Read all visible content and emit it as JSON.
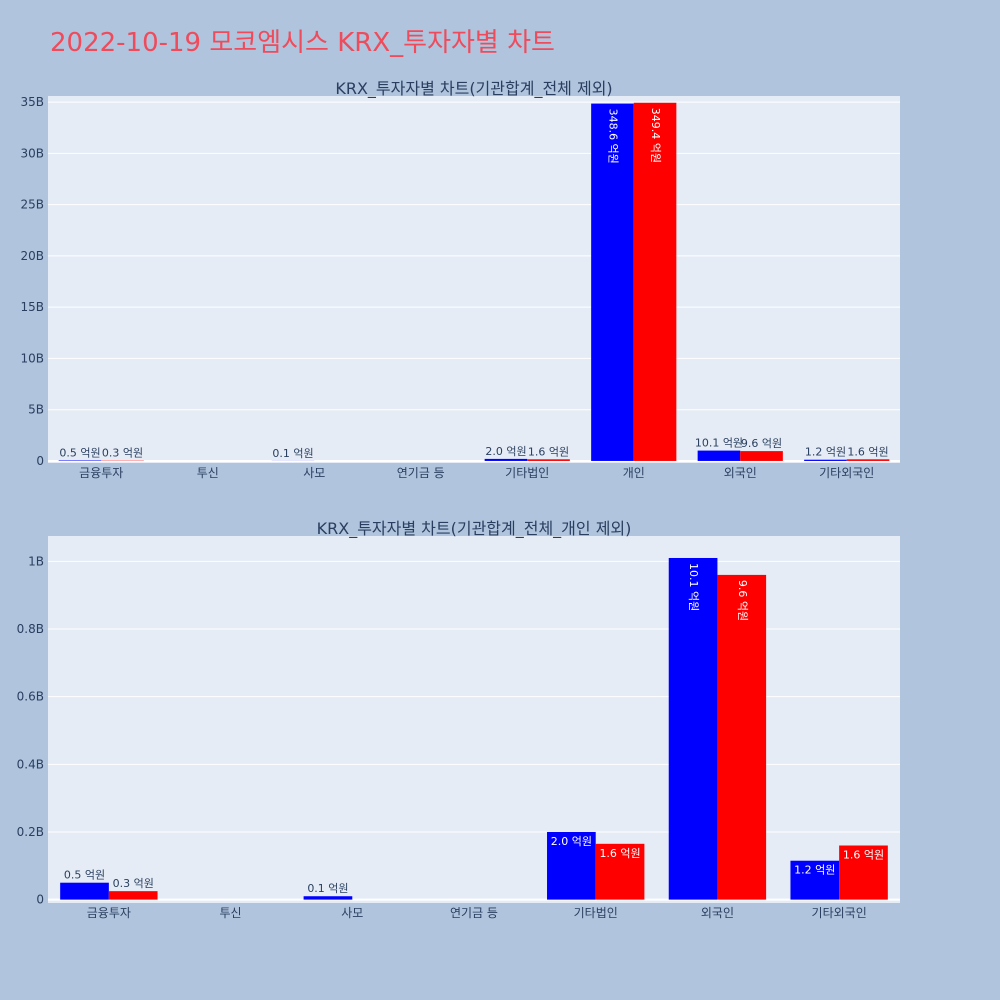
{
  "page_title": "2022-10-19 모코엠시스 KRX_투자자별 차트",
  "colors": {
    "background": "#b0c4de",
    "plot_background": "#e5ecf6",
    "title": "#ef4b5b",
    "text": "#2a3f5f",
    "series_a": "#0000ff",
    "series_b": "#ff0000"
  },
  "chart_data": [
    {
      "type": "bar",
      "title": "KRX_투자자별 차트(기관합계_전체 제외)",
      "categories": [
        "금융투자",
        "투신",
        "사모",
        "연기금 등",
        "기타법인",
        "개인",
        "외국인",
        "기타외국인"
      ],
      "series": [
        {
          "color": "#0000ff",
          "values": [
            50000000,
            0,
            10000000,
            0,
            200000000,
            34860000000,
            1010000000,
            120000000
          ],
          "labels": [
            "0.5 억원",
            "",
            "0.1 억원",
            "",
            "2.0 억원",
            "348.6 억원",
            "10.1 억원",
            "1.2 억원"
          ]
        },
        {
          "color": "#ff0000",
          "values": [
            30000000,
            0,
            0,
            0,
            160000000,
            34940000000,
            960000000,
            160000000
          ],
          "labels": [
            "0.3 억원",
            "",
            "",
            "",
            "1.6 억원",
            "349.4 억원",
            "9.6 억원",
            "1.6 억원"
          ]
        }
      ],
      "yticks": [
        {
          "value": 0,
          "label": "0"
        },
        {
          "value": 5000000000,
          "label": "5B"
        },
        {
          "value": 10000000000,
          "label": "10B"
        },
        {
          "value": 15000000000,
          "label": "15B"
        },
        {
          "value": 20000000000,
          "label": "20B"
        },
        {
          "value": 25000000000,
          "label": "25B"
        },
        {
          "value": 30000000000,
          "label": "30B"
        },
        {
          "value": 35000000000,
          "label": "35B"
        }
      ],
      "ylim": [
        -200000000,
        35600000000
      ],
      "grid": true
    },
    {
      "type": "bar",
      "title": "KRX_투자자별 차트(기관합계_전체_개인 제외)",
      "categories": [
        "금융투자",
        "투신",
        "사모",
        "연기금 등",
        "기타법인",
        "외국인",
        "기타외국인"
      ],
      "series": [
        {
          "color": "#0000ff",
          "values": [
            50000000,
            0,
            10000000,
            0,
            200000000,
            1010000000,
            115000000
          ],
          "labels": [
            "0.5 억원",
            "",
            "0.1 억원",
            "",
            "2.0 억원",
            "10.1 억원",
            "1.2 억원"
          ]
        },
        {
          "color": "#ff0000",
          "values": [
            25000000,
            0,
            0,
            0,
            165000000,
            960000000,
            160000000
          ],
          "labels": [
            "0.3 억원",
            "",
            "",
            "",
            "1.6 억원",
            "9.6 억원",
            "1.6 억원"
          ]
        }
      ],
      "yticks": [
        {
          "value": 0,
          "label": "0"
        },
        {
          "value": 200000000,
          "label": "0.2B"
        },
        {
          "value": 400000000,
          "label": "0.4B"
        },
        {
          "value": 600000000,
          "label": "0.6B"
        },
        {
          "value": 800000000,
          "label": "0.8B"
        },
        {
          "value": 1000000000,
          "label": "1B"
        }
      ],
      "ylim": [
        -10000000,
        1075000000
      ],
      "grid": true
    }
  ]
}
